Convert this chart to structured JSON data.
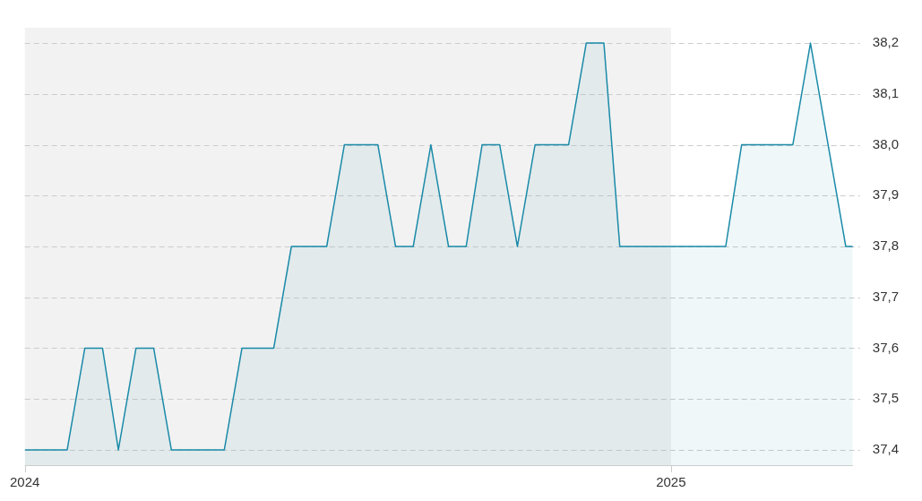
{
  "chart_data": {
    "type": "area",
    "x": [
      "2024-01-01",
      "2024-01-25",
      "2024-02-04",
      "2024-02-14",
      "2024-02-23",
      "2024-03-04",
      "2024-03-14",
      "2024-03-24",
      "2024-04-23",
      "2024-05-03",
      "2024-05-21",
      "2024-05-31",
      "2024-06-20",
      "2024-06-30",
      "2024-07-19",
      "2024-07-29",
      "2024-08-08",
      "2024-08-18",
      "2024-08-28",
      "2024-09-07",
      "2024-09-16",
      "2024-09-26",
      "2024-10-06",
      "2024-10-16",
      "2024-11-04",
      "2024-11-14",
      "2024-11-24",
      "2024-12-03",
      "2025-02-01",
      "2025-02-10",
      "2025-03-11",
      "2025-03-21",
      "2025-04-10",
      "2025-04-14"
    ],
    "series": [
      {
        "color": "#1a8aa8",
        "values": [
          37.4,
          37.4,
          37.6,
          37.6,
          37.4,
          37.6,
          37.6,
          37.4,
          37.4,
          37.6,
          37.6,
          37.8,
          37.8,
          38.0,
          38.0,
          37.8,
          37.8,
          38.0,
          37.8,
          37.8,
          38.0,
          38.0,
          37.8,
          38.0,
          38.0,
          38.2,
          38.2,
          37.8,
          37.8,
          38.0,
          38.0,
          38.2,
          37.8,
          37.8
        ]
      }
    ],
    "xlim": [
      "2024-01-01",
      "2025-04-14"
    ],
    "xticks": [
      {
        "value": "2024-01-01",
        "label": "2024"
      },
      {
        "value": "2025-01-01",
        "label": "2025"
      }
    ],
    "ylim": [
      37.37,
      38.23
    ],
    "yticks": [
      {
        "value": 37.4,
        "label": "37,4"
      },
      {
        "value": 37.5,
        "label": "37,5"
      },
      {
        "value": 37.6,
        "label": "37,6"
      },
      {
        "value": 37.7,
        "label": "37,7"
      },
      {
        "value": 37.8,
        "label": "37,8"
      },
      {
        "value": 37.9,
        "label": "37,9"
      },
      {
        "value": 38.0,
        "label": "38,0"
      },
      {
        "value": 38.1,
        "label": "38,1"
      },
      {
        "value": 38.2,
        "label": "38,2"
      }
    ],
    "bands": [
      {
        "axis": "x",
        "from": "2024-01-01",
        "to": "2025-01-01",
        "color": "#f2f2f2"
      }
    ],
    "grid": "y",
    "line_style": "solid",
    "marker": "none",
    "legend": false
  }
}
